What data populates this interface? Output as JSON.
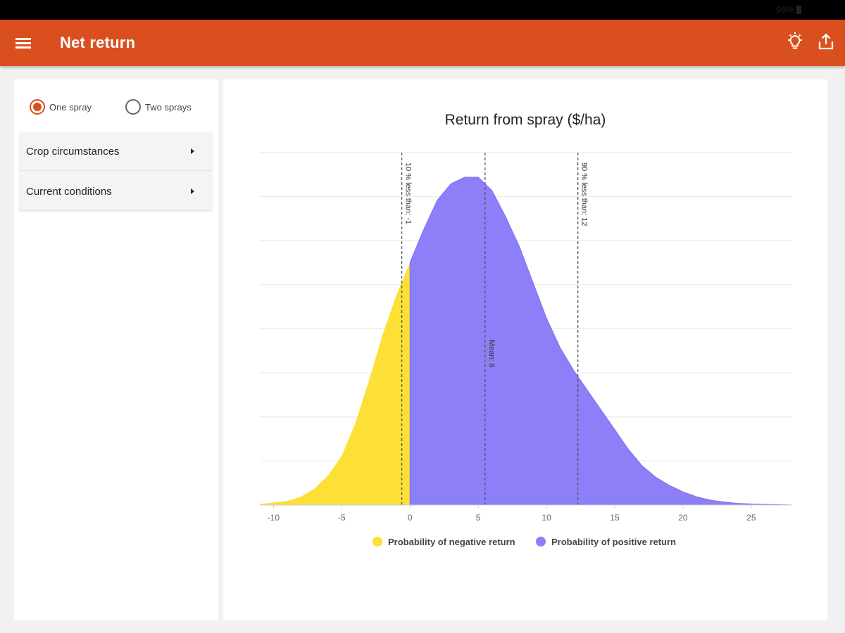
{
  "status_bar": {
    "battery": "96%"
  },
  "app_bar": {
    "title": "Net return",
    "menu_icon": "hamburger-menu-icon",
    "tips_icon": "lightbulb-icon",
    "share_icon": "share-upload-icon",
    "color": "#d9501e"
  },
  "side_panel": {
    "spray_options": [
      {
        "label": "One spray",
        "selected": true
      },
      {
        "label": "Two sprays",
        "selected": false
      }
    ],
    "sections": [
      {
        "label": "Crop circumstances"
      },
      {
        "label": "Current conditions"
      }
    ]
  },
  "chart_data": {
    "type": "area",
    "title": "Return from spray ($/ha)",
    "xlabel": "",
    "ylabel": "",
    "xlim": [
      -11,
      28
    ],
    "x_ticks": [
      -10,
      -5,
      0,
      5,
      10,
      15,
      20,
      25
    ],
    "grid": true,
    "series": [
      {
        "name": "Probability of negative return",
        "color": "#fde035",
        "x_range": [
          -11,
          0
        ]
      },
      {
        "name": "Probability of positive return",
        "color": "#8c7ff7",
        "x_range": [
          0,
          28
        ]
      }
    ],
    "curve": {
      "x": [
        -11,
        -9,
        -8,
        -7,
        -6,
        -5,
        -4,
        -3,
        -2,
        -1,
        0,
        1,
        2,
        3,
        4,
        5,
        6,
        7,
        8,
        9,
        10,
        11,
        12,
        13,
        14,
        15,
        16,
        17,
        18,
        19,
        20,
        21,
        22,
        23,
        24,
        25,
        26,
        27,
        28
      ],
      "y": [
        0.003,
        0.012,
        0.025,
        0.05,
        0.09,
        0.15,
        0.25,
        0.38,
        0.52,
        0.64,
        0.74,
        0.84,
        0.93,
        0.98,
        1.0,
        1.0,
        0.96,
        0.88,
        0.79,
        0.68,
        0.57,
        0.48,
        0.41,
        0.35,
        0.29,
        0.23,
        0.17,
        0.12,
        0.085,
        0.06,
        0.04,
        0.025,
        0.015,
        0.009,
        0.005,
        0.003,
        0.002,
        0.001,
        0.0
      ]
    },
    "reference_lines": [
      {
        "x": -0.6,
        "label": "10 % less than: -1"
      },
      {
        "x": 5.5,
        "label": "Mean: 6"
      },
      {
        "x": 12.3,
        "label": "90 % less than: 12"
      }
    ],
    "legend_position": "bottom"
  }
}
